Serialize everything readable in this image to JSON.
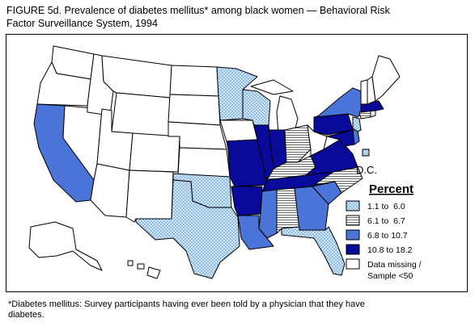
{
  "figure": {
    "title_line1": "FIGURE 5d. Prevalence of diabetes mellitus* among black women — Behavioral Risk",
    "title_line2": "Factor Surveillance System, 1994",
    "footnote_line1": "*Diabetes mellitus: Survey participants having ever been told by a physician that they have",
    "footnote_line2": "diabetes."
  },
  "map": {
    "inset_label": "D.C.",
    "legend_title": "Percent",
    "legend": [
      {
        "key": "light",
        "label": "1.1 to  6.0",
        "pattern": "dots-blue"
      },
      {
        "key": "lines",
        "label": "6.1 to  6.7",
        "pattern": "horizontal-lines"
      },
      {
        "key": "mid",
        "label": "6.8 to 10.7",
        "color": "#4a74d8"
      },
      {
        "key": "dark",
        "label": "10.8 to 18.2",
        "color": "#0a0a9a"
      },
      {
        "key": "none",
        "label_line1": "Data missing /",
        "label_line2": "Sample <50",
        "color": "#ffffff"
      }
    ],
    "categories": {
      "light": [
        "TX",
        "OK",
        "MN",
        "WI",
        "FL",
        "NJ"
      ],
      "lines": [
        "OH",
        "KY",
        "NC",
        "AL",
        "CT"
      ],
      "mid": [
        "CA",
        "LA",
        "GA",
        "SC",
        "NY",
        "MS",
        "DE"
      ],
      "dark": [
        "MO",
        "IL",
        "AR",
        "TN",
        "VA",
        "PA",
        "MD",
        "MA",
        "IN"
      ],
      "none": [
        "WA",
        "OR",
        "ID",
        "MT",
        "WY",
        "NV",
        "UT",
        "CO",
        "AZ",
        "NM",
        "ND",
        "SD",
        "NE",
        "KS",
        "IA",
        "MI",
        "WV",
        "ME",
        "NH",
        "VT",
        "RI",
        "AK",
        "HI"
      ]
    },
    "dc_category": "light"
  }
}
